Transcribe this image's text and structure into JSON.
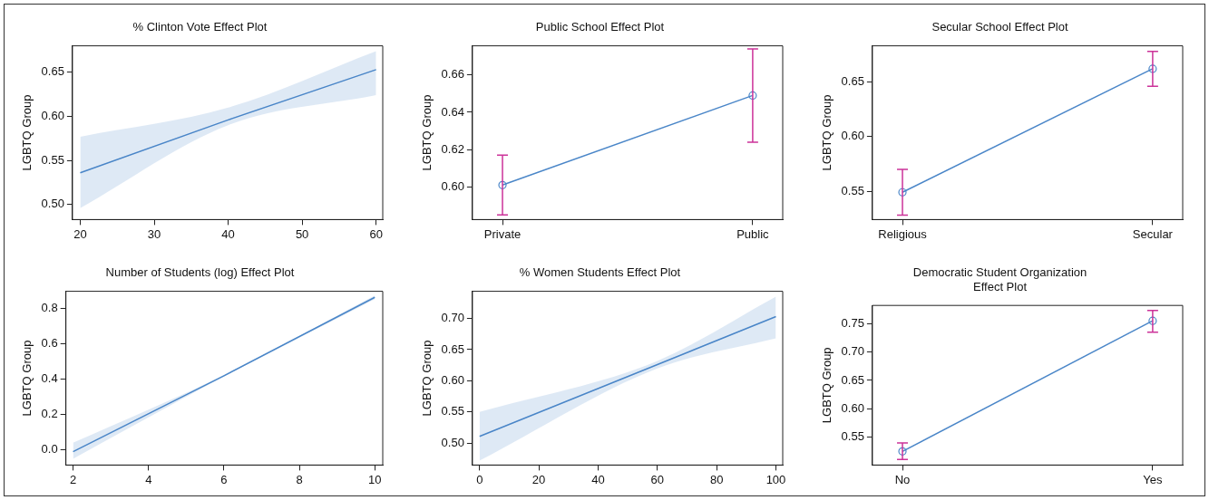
{
  "chart_data": [
    {
      "type": "line",
      "title": "% Clinton Vote Effect Plot",
      "ylabel": "LGBTQ Group",
      "grid": false,
      "marker": "none",
      "xlim": [
        18.95,
        60.9
      ],
      "ylim": [
        0.483,
        0.68
      ],
      "xticks": [
        20,
        30,
        40,
        50,
        60
      ],
      "yticks": [
        {
          "value": 0.5,
          "label": "0.50"
        },
        {
          "value": 0.55,
          "label": "0.55"
        },
        {
          "value": 0.6,
          "label": "0.60"
        },
        {
          "value": 0.65,
          "label": "0.65"
        }
      ],
      "series": [
        {
          "color": "#4a86c8",
          "x": [
            20,
            40,
            60
          ],
          "values": [
            0.536,
            0.596,
            0.653
          ],
          "lower": [
            0.496,
            0.59,
            0.624
          ],
          "upper": [
            0.577,
            0.61,
            0.674
          ]
        }
      ]
    },
    {
      "type": "line",
      "title": "Public School Effect Plot",
      "ylabel": "LGBTQ Group",
      "grid": false,
      "marker": "circle",
      "categories": [
        "Private",
        "Public"
      ],
      "ylim": [
        0.5825,
        0.6756
      ],
      "yticks": [
        {
          "value": 0.6,
          "label": "0.60"
        },
        {
          "value": 0.62,
          "label": "0.62"
        },
        {
          "value": 0.64,
          "label": "0.64"
        },
        {
          "value": 0.66,
          "label": "0.66"
        }
      ],
      "series": [
        {
          "color": "#4a86c8",
          "values": [
            0.601,
            0.649
          ],
          "errors": [
            [
              0.585,
              0.617
            ],
            [
              0.624,
              0.674
            ]
          ]
        }
      ]
    },
    {
      "type": "line",
      "title": "Secular School Effect Plot",
      "ylabel": "LGBTQ Group",
      "grid": false,
      "marker": "circle",
      "categories": [
        "Religious",
        "Secular"
      ],
      "ylim": [
        0.524,
        0.683
      ],
      "yticks": [
        {
          "value": 0.55,
          "label": "0.55"
        },
        {
          "value": 0.6,
          "label": "0.60"
        },
        {
          "value": 0.65,
          "label": "0.65"
        }
      ],
      "series": [
        {
          "color": "#4a86c8",
          "values": [
            0.549,
            0.662
          ],
          "errors": [
            [
              0.528,
              0.57
            ],
            [
              0.646,
              0.678
            ]
          ]
        }
      ]
    },
    {
      "type": "line",
      "title": "Number of Students (log) Effect Plot",
      "ylabel": "LGBTQ Group",
      "grid": false,
      "marker": "none",
      "xlim": [
        1.81,
        10.21
      ],
      "ylim": [
        -0.086,
        0.899
      ],
      "xticks": [
        2,
        4,
        6,
        8,
        10
      ],
      "yticks": [
        {
          "value": 0,
          "label": "0.0"
        },
        {
          "value": 0.2,
          "label": "0.2"
        },
        {
          "value": 0.4,
          "label": "0.4"
        },
        {
          "value": 0.6,
          "label": "0.6"
        },
        {
          "value": 0.8,
          "label": "0.8"
        }
      ],
      "series": [
        {
          "color": "#4a86c8",
          "x": [
            2,
            6,
            10
          ],
          "values": [
            -0.01,
            0.42,
            0.865
          ],
          "lower": [
            -0.05,
            0.415,
            0.855
          ],
          "upper": [
            0.04,
            0.425,
            0.875
          ]
        }
      ]
    },
    {
      "type": "line",
      "title": "% Women Students Effect Plot",
      "ylabel": "LGBTQ Group",
      "grid": false,
      "marker": "none",
      "xlim": [
        -2.4,
        102.3
      ],
      "ylim": [
        0.465,
        0.7435
      ],
      "xticks": [
        0,
        20,
        40,
        60,
        80,
        100
      ],
      "yticks": [
        {
          "value": 0.5,
          "label": "0.50"
        },
        {
          "value": 0.55,
          "label": "0.55"
        },
        {
          "value": 0.6,
          "label": "0.60"
        },
        {
          "value": 0.65,
          "label": "0.65"
        },
        {
          "value": 0.7,
          "label": "0.70"
        }
      ],
      "series": [
        {
          "color": "#4a86c8",
          "x": [
            0,
            60,
            100
          ],
          "values": [
            0.511,
            0.626,
            0.703
          ],
          "lower": [
            0.472,
            0.62,
            0.668
          ],
          "upper": [
            0.55,
            0.632,
            0.735
          ]
        }
      ]
    },
    {
      "type": "line",
      "title": "Democratic Student Organization\nEffect Plot",
      "ylabel": "LGBTQ Group",
      "grid": false,
      "marker": "circle",
      "categories": [
        "No",
        "Yes"
      ],
      "ylim": [
        0.501,
        0.782
      ],
      "yticks": [
        {
          "value": 0.55,
          "label": "0.55"
        },
        {
          "value": 0.6,
          "label": "0.60"
        },
        {
          "value": 0.65,
          "label": "0.65"
        },
        {
          "value": 0.7,
          "label": "0.70"
        },
        {
          "value": 0.75,
          "label": "0.75"
        }
      ],
      "series": [
        {
          "color": "#4a86c8",
          "values": [
            0.525,
            0.755
          ],
          "errors": [
            [
              0.511,
              0.54
            ],
            [
              0.735,
              0.773
            ]
          ]
        }
      ]
    }
  ]
}
